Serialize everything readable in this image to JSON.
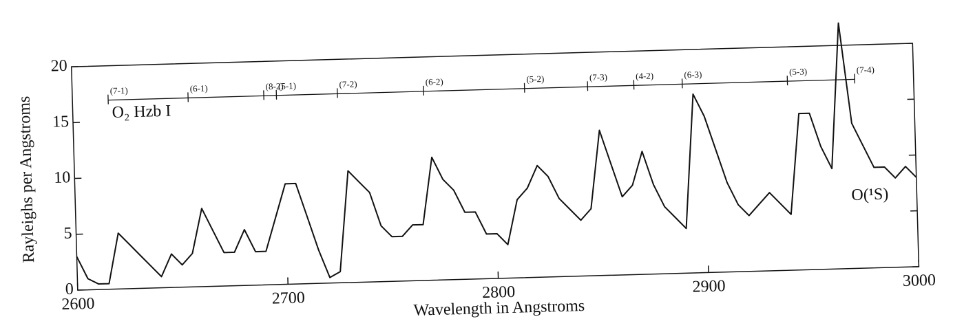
{
  "chart_data": {
    "type": "line",
    "xlabel": "Wavelength in Angstroms",
    "ylabel": "Rayleighs per Angstroms",
    "xlim": [
      2600,
      3000
    ],
    "ylim": [
      0,
      20
    ],
    "xticks": [
      2600,
      2700,
      2800,
      2900,
      3000
    ],
    "yticks": [
      0,
      5,
      10,
      15,
      20
    ],
    "color": "#111111",
    "x": [
      2600,
      2605,
      2610,
      2615,
      2620,
      2625,
      2630,
      2635,
      2640,
      2645,
      2650,
      2655,
      2660,
      2665,
      2670,
      2675,
      2680,
      2685,
      2690,
      2695,
      2700,
      2705,
      2710,
      2715,
      2720,
      2725,
      2730,
      2735,
      2740,
      2745,
      2750,
      2755,
      2760,
      2765,
      2770,
      2775,
      2780,
      2785,
      2790,
      2795,
      2800,
      2805,
      2810,
      2815,
      2820,
      2825,
      2830,
      2835,
      2840,
      2845,
      2850,
      2855,
      2860,
      2865,
      2870,
      2875,
      2880,
      2885,
      2890,
      2895,
      2900,
      2905,
      2910,
      2915,
      2920,
      2925,
      2930,
      2935,
      2940,
      2945,
      2950,
      2955,
      2960,
      2965,
      2970,
      2975,
      2980,
      2985,
      2990,
      2995,
      3000
    ],
    "values": [
      3,
      1,
      0.5,
      0.5,
      5,
      4,
      3,
      2,
      1,
      3,
      2,
      3,
      7,
      5,
      3,
      3,
      5,
      3,
      3,
      6,
      9,
      9,
      6,
      3,
      0.5,
      1,
      10,
      9,
      8,
      5,
      4,
      4,
      5,
      5,
      11,
      9,
      8,
      6,
      6,
      4,
      4,
      3,
      7,
      8,
      10,
      9,
      7,
      6,
      5,
      6,
      13,
      10,
      7,
      8,
      11,
      8,
      6,
      5,
      4,
      16,
      14,
      11,
      8,
      6,
      5,
      6,
      7,
      6,
      5,
      14,
      14,
      11,
      9,
      22,
      13,
      11,
      9,
      9,
      8,
      9,
      8
    ],
    "bands": {
      "labels": [
        "(7-1)",
        "(6-1)",
        "(8-2)",
        "(5-1)",
        "(7-2)",
        "(6-2)",
        "(5-2)",
        "(7-3)",
        "(4-2)",
        "(6-3)",
        "(5-3)",
        "(7-4)"
      ],
      "x": [
        2617,
        2655,
        2691,
        2697,
        2726,
        2767,
        2815,
        2845,
        2867,
        2890,
        2940,
        2972
      ]
    },
    "annotations": [
      "O₂ Hzb I",
      "O(¹S)"
    ]
  }
}
